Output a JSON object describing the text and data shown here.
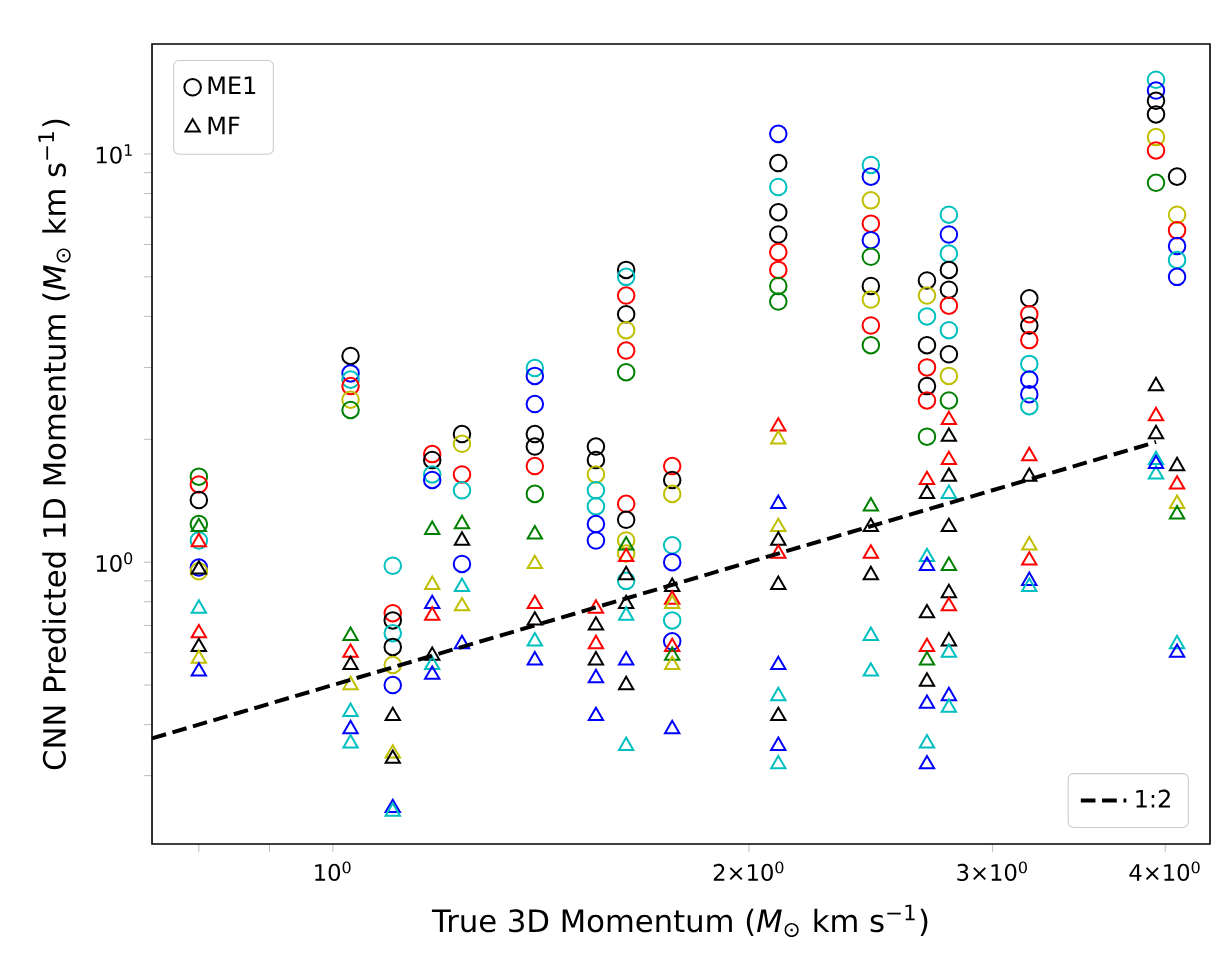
{
  "chart_data": {
    "type": "scatter",
    "xlabel": "True 3D Momentum (*M*$_{⊙}$ km s$^{−1}$)",
    "ylabel": "CNN Predicted 1D Momentum (*M*$_{⊙}$ km s$^{−1}$)",
    "log": "xy",
    "legend": "top left",
    "xlim": [
      0.74,
      4.31
    ],
    "ylim": [
      0.204,
      18.6
    ],
    "xticks": [
      {
        "value": 0.8,
        "label": null
      },
      {
        "value": 0.9,
        "label": null
      },
      {
        "value": 1,
        "label": "10$^{0}$"
      },
      {
        "value": 2,
        "label": "2×10$^{0}$"
      },
      {
        "value": 3,
        "label": "3×10$^{0}$"
      },
      {
        "value": 4,
        "label": "4×10$^{0}$"
      }
    ],
    "yticks": [
      {
        "value": 0.3,
        "label": null
      },
      {
        "value": 0.4,
        "label": null
      },
      {
        "value": 0.5,
        "label": null
      },
      {
        "value": 0.6,
        "label": null
      },
      {
        "value": 0.7,
        "label": null
      },
      {
        "value": 0.8,
        "label": null
      },
      {
        "value": 0.9,
        "label": null
      },
      {
        "value": 1,
        "label": "10$^{0}$"
      },
      {
        "value": 2,
        "label": null
      },
      {
        "value": 3,
        "label": null
      },
      {
        "value": 4,
        "label": null
      },
      {
        "value": 5,
        "label": null
      },
      {
        "value": 6,
        "label": null
      },
      {
        "value": 7,
        "label": null
      },
      {
        "value": 8,
        "label": null
      },
      {
        "value": 9,
        "label": null
      },
      {
        "value": 10,
        "label": "10$^{1}$"
      }
    ],
    "series": [
      {
        "name": "ME1",
        "marker": "circle",
        "color": "#000000",
        "x": [
          0.8,
          0.8,
          0.8,
          0.8,
          0.8,
          0.8,
          0.8,
          1.03,
          1.03,
          1.03,
          1.03,
          1.03,
          1.03,
          1.105,
          1.105,
          1.105,
          1.105,
          1.105,
          1.105,
          1.105,
          1.18,
          1.18,
          1.18,
          1.18,
          1.24,
          1.24,
          1.24,
          1.24,
          1.24,
          1.4,
          1.4,
          1.4,
          1.4,
          1.4,
          1.4,
          1.4,
          1.55,
          1.55,
          1.55,
          1.55,
          1.55,
          1.55,
          1.55,
          1.63,
          1.63,
          1.63,
          1.63,
          1.63,
          1.63,
          1.63,
          1.63,
          1.63,
          1.63,
          1.63,
          1.63,
          1.76,
          1.76,
          1.76,
          1.76,
          1.76,
          1.76,
          1.76,
          2.1,
          2.1,
          2.1,
          2.1,
          2.1,
          2.1,
          2.1,
          2.1,
          2.1,
          2.45,
          2.45,
          2.45,
          2.45,
          2.45,
          2.45,
          2.45,
          2.45,
          2.45,
          2.45,
          2.69,
          2.69,
          2.69,
          2.69,
          2.69,
          2.69,
          2.69,
          2.69,
          2.79,
          2.79,
          2.79,
          2.79,
          2.79,
          2.79,
          2.79,
          2.79,
          2.79,
          2.79,
          3.19,
          3.19,
          3.19,
          3.19,
          3.19,
          3.19,
          3.19,
          3.19,
          3.94,
          3.94,
          3.94,
          3.94,
          3.94,
          3.94,
          3.94,
          4.08,
          4.08,
          4.08,
          4.08,
          4.08,
          4.08
        ],
        "values": [
          1.62,
          1.55,
          1.42,
          1.24,
          1.13,
          0.97,
          0.95,
          3.2,
          2.9,
          2.8,
          2.7,
          2.5,
          2.36,
          0.98,
          0.75,
          0.72,
          0.67,
          0.62,
          0.56,
          0.5,
          1.84,
          1.78,
          1.64,
          1.59,
          2.06,
          1.95,
          1.64,
          1.5,
          0.99,
          2.99,
          2.86,
          2.44,
          2.06,
          1.92,
          1.72,
          1.47,
          1.92,
          1.78,
          1.64,
          1.5,
          1.37,
          1.24,
          1.13,
          5.2,
          5.0,
          4.5,
          4.05,
          3.7,
          3.3,
          2.92,
          1.39,
          1.27,
          1.13,
          1.05,
          0.9,
          1.72,
          1.59,
          1.47,
          1.1,
          1.0,
          0.72,
          0.64,
          11.2,
          9.5,
          8.3,
          7.2,
          6.35,
          5.75,
          5.2,
          4.75,
          4.35,
          9.4,
          8.8,
          7.7,
          6.75,
          6.15,
          5.6,
          4.75,
          4.4,
          3.8,
          3.4,
          4.9,
          4.5,
          4.0,
          3.4,
          3.0,
          2.7,
          2.49,
          2.03,
          7.1,
          6.35,
          5.7,
          5.2,
          4.65,
          4.25,
          3.7,
          3.23,
          2.86,
          2.49,
          4.43,
          4.05,
          3.8,
          3.5,
          3.06,
          2.8,
          2.58,
          2.41,
          15.2,
          14.3,
          13.5,
          12.5,
          11.0,
          10.2,
          8.5,
          8.8,
          7.1,
          6.5,
          5.95,
          5.5,
          5.0
        ],
        "colors": [
          "#008000",
          "#ff0000",
          "#000000",
          "#008000",
          "#00bfbf",
          "#0000ff",
          "#bfbf00",
          "#000000",
          "#0000ff",
          "#00bfbf",
          "#ff0000",
          "#bfbf00",
          "#008000",
          "#00bfbf",
          "#ff0000",
          "#000000",
          "#00bfbf",
          "#000000",
          "#bfbf00",
          "#0000ff",
          "#ff0000",
          "#000000",
          "#00bfbf",
          "#0000ff",
          "#000000",
          "#bfbf00",
          "#ff0000",
          "#00bfbf",
          "#0000ff",
          "#00bfbf",
          "#0000ff",
          "#0000ff",
          "#000000",
          "#000000",
          "#ff0000",
          "#008000",
          "#000000",
          "#000000",
          "#bfbf00",
          "#00bfbf",
          "#00bfbf",
          "#0000ff",
          "#0000ff",
          "#000000",
          "#00bfbf",
          "#ff0000",
          "#000000",
          "#bfbf00",
          "#ff0000",
          "#008000",
          "#ff0000",
          "#000000",
          "#bfbf00",
          "#bfbf00",
          "#00bfbf",
          "#ff0000",
          "#000000",
          "#bfbf00",
          "#00bfbf",
          "#0000ff",
          "#00bfbf",
          "#0000ff",
          "#0000ff",
          "#000000",
          "#00bfbf",
          "#000000",
          "#000000",
          "#ff0000",
          "#ff0000",
          "#008000",
          "#008000",
          "#00bfbf",
          "#0000ff",
          "#bfbf00",
          "#ff0000",
          "#0000ff",
          "#008000",
          "#000000",
          "#bfbf00",
          "#ff0000",
          "#008000",
          "#000000",
          "#bfbf00",
          "#00bfbf",
          "#000000",
          "#ff0000",
          "#000000",
          "#ff0000",
          "#008000",
          "#00bfbf",
          "#0000ff",
          "#00bfbf",
          "#000000",
          "#000000",
          "#ff0000",
          "#00bfbf",
          "#000000",
          "#bfbf00",
          "#008000",
          "#000000",
          "#ff0000",
          "#000000",
          "#ff0000",
          "#00bfbf",
          "#0000ff",
          "#0000ff",
          "#00bfbf",
          "#00bfbf",
          "#0000ff",
          "#000000",
          "#000000",
          "#bfbf00",
          "#ff0000",
          "#008000",
          "#000000",
          "#bfbf00",
          "#ff0000",
          "#0000ff",
          "#00bfbf",
          "#0000ff"
        ]
      },
      {
        "name": "MF",
        "marker": "triangle",
        "color": "#000000",
        "x": [
          0.8,
          0.8,
          0.8,
          0.8,
          0.8,
          0.8,
          0.8,
          0.8,
          1.03,
          1.03,
          1.03,
          1.03,
          1.03,
          1.03,
          1.03,
          1.105,
          1.105,
          1.105,
          1.105,
          1.105,
          1.18,
          1.18,
          1.18,
          1.18,
          1.18,
          1.18,
          1.18,
          1.24,
          1.24,
          1.24,
          1.24,
          1.24,
          1.4,
          1.4,
          1.4,
          1.4,
          1.4,
          1.4,
          1.55,
          1.55,
          1.55,
          1.55,
          1.55,
          1.55,
          1.63,
          1.63,
          1.63,
          1.63,
          1.63,
          1.63,
          1.63,
          1.63,
          1.76,
          1.76,
          1.76,
          1.76,
          1.76,
          1.76,
          1.76,
          2.1,
          2.1,
          2.1,
          2.1,
          2.1,
          2.1,
          2.1,
          2.1,
          2.1,
          2.1,
          2.1,
          2.1,
          2.45,
          2.45,
          2.45,
          2.45,
          2.45,
          2.45,
          2.69,
          2.69,
          2.69,
          2.69,
          2.69,
          2.69,
          2.69,
          2.69,
          2.69,
          2.69,
          2.69,
          2.79,
          2.79,
          2.79,
          2.79,
          2.79,
          2.79,
          2.79,
          2.79,
          2.79,
          2.79,
          2.79,
          2.79,
          2.79,
          3.19,
          3.19,
          3.19,
          3.19,
          3.19,
          3.19,
          3.94,
          3.94,
          3.94,
          3.94,
          3.94,
          3.94,
          4.08,
          4.08,
          4.08,
          4.08,
          4.08,
          4.08
        ],
        "values": [
          1.22,
          1.12,
          0.96,
          0.77,
          0.67,
          0.62,
          0.58,
          0.54,
          0.66,
          0.6,
          0.56,
          0.5,
          0.43,
          0.39,
          0.36,
          0.42,
          0.34,
          0.33,
          0.25,
          0.245,
          1.2,
          0.88,
          0.79,
          0.74,
          0.59,
          0.56,
          0.53,
          1.24,
          1.13,
          0.87,
          0.78,
          0.63,
          1.17,
          0.99,
          0.79,
          0.72,
          0.64,
          0.575,
          0.77,
          0.7,
          0.63,
          0.575,
          0.52,
          0.42,
          1.1,
          1.03,
          0.93,
          0.79,
          0.74,
          0.575,
          0.5,
          0.355,
          0.87,
          0.81,
          0.79,
          0.62,
          0.59,
          0.56,
          0.39,
          2.15,
          2.0,
          1.39,
          1.22,
          1.13,
          1.05,
          0.88,
          0.56,
          0.47,
          0.42,
          0.355,
          0.32,
          1.37,
          1.22,
          1.05,
          0.93,
          0.66,
          0.54,
          1.59,
          1.47,
          1.03,
          0.98,
          0.75,
          0.62,
          0.575,
          0.51,
          0.45,
          0.36,
          0.32,
          2.23,
          2.03,
          1.78,
          1.62,
          1.47,
          1.22,
          0.98,
          0.84,
          0.78,
          0.64,
          0.6,
          0.47,
          0.44,
          1.82,
          1.62,
          1.1,
          1.01,
          0.9,
          0.87,
          2.7,
          2.28,
          2.06,
          1.78,
          1.64,
          1.74,
          1.72,
          1.55,
          1.39,
          1.31,
          0.63,
          0.6
        ],
        "colors": [
          "#008000",
          "#ff0000",
          "#000000",
          "#00bfbf",
          "#ff0000",
          "#000000",
          "#bfbf00",
          "#0000ff",
          "#008000",
          "#ff0000",
          "#000000",
          "#bfbf00",
          "#00bfbf",
          "#0000ff",
          "#00bfbf",
          "#000000",
          "#bfbf00",
          "#000000",
          "#0000ff",
          "#00bfbf",
          "#008000",
          "#bfbf00",
          "#0000ff",
          "#ff0000",
          "#000000",
          "#00bfbf",
          "#0000ff",
          "#008000",
          "#000000",
          "#00bfbf",
          "#bfbf00",
          "#0000ff",
          "#008000",
          "#bfbf00",
          "#ff0000",
          "#000000",
          "#00bfbf",
          "#0000ff",
          "#ff0000",
          "#000000",
          "#ff0000",
          "#000000",
          "#0000ff",
          "#0000ff",
          "#008000",
          "#ff0000",
          "#000000",
          "#000000",
          "#00bfbf",
          "#0000ff",
          "#000000",
          "#00bfbf",
          "#000000",
          "#ff0000",
          "#bfbf00",
          "#ff0000",
          "#008000",
          "#bfbf00",
          "#0000ff",
          "#ff0000",
          "#bfbf00",
          "#0000ff",
          "#bfbf00",
          "#000000",
          "#ff0000",
          "#000000",
          "#0000ff",
          "#00bfbf",
          "#000000",
          "#0000ff",
          "#00bfbf",
          "#008000",
          "#000000",
          "#ff0000",
          "#000000",
          "#00bfbf",
          "#00bfbf",
          "#ff0000",
          "#000000",
          "#00bfbf",
          "#0000ff",
          "#000000",
          "#ff0000",
          "#008000",
          "#000000",
          "#0000ff",
          "#00bfbf",
          "#0000ff",
          "#ff0000",
          "#000000",
          "#ff0000",
          "#000000",
          "#00bfbf",
          "#000000",
          "#008000",
          "#000000",
          "#ff0000",
          "#000000",
          "#00bfbf",
          "#0000ff",
          "#00bfbf",
          "#ff0000",
          "#000000",
          "#bfbf00",
          "#ff0000",
          "#0000ff",
          "#00bfbf",
          "#000000",
          "#ff0000",
          "#000000",
          "#00bfbf",
          "#00bfbf",
          "#0000ff",
          "#000000",
          "#ff0000",
          "#bfbf00",
          "#008000",
          "#00bfbf",
          "#0000ff"
        ]
      },
      {
        "name": "1:2",
        "type": "line",
        "line_style": "dashed",
        "color": "#000000",
        "x": [
          0.74,
          3.94
        ],
        "values": [
          0.37,
          1.97
        ]
      }
    ]
  }
}
